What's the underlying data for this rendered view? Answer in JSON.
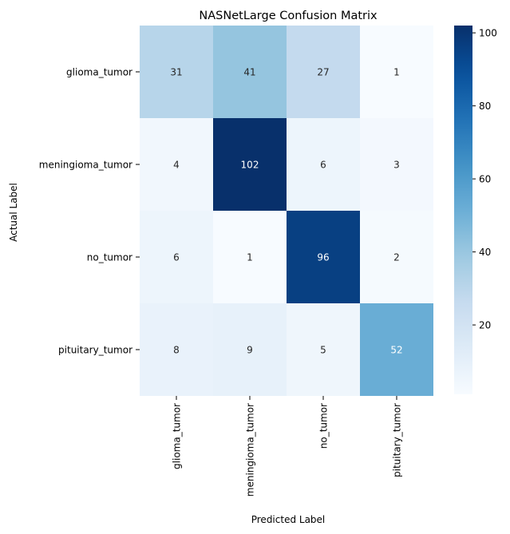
{
  "chart_data": {
    "type": "heatmap",
    "title": "NASNetLarge Confusion Matrix",
    "xlabel": "Predicted Label",
    "ylabel": "Actual Label",
    "x_categories": [
      "glioma_tumor",
      "meningioma_tumor",
      "no_tumor",
      "pituitary_tumor"
    ],
    "y_categories": [
      "glioma_tumor",
      "meningioma_tumor",
      "no_tumor",
      "pituitary_tumor"
    ],
    "matrix": [
      [
        31,
        41,
        27,
        1
      ],
      [
        4,
        102,
        6,
        3
      ],
      [
        6,
        1,
        96,
        2
      ],
      [
        8,
        9,
        5,
        52
      ]
    ],
    "colormap": "Blues",
    "color_range": [
      1,
      102
    ],
    "colorbar_ticks": [
      20,
      40,
      60,
      80,
      100
    ]
  }
}
